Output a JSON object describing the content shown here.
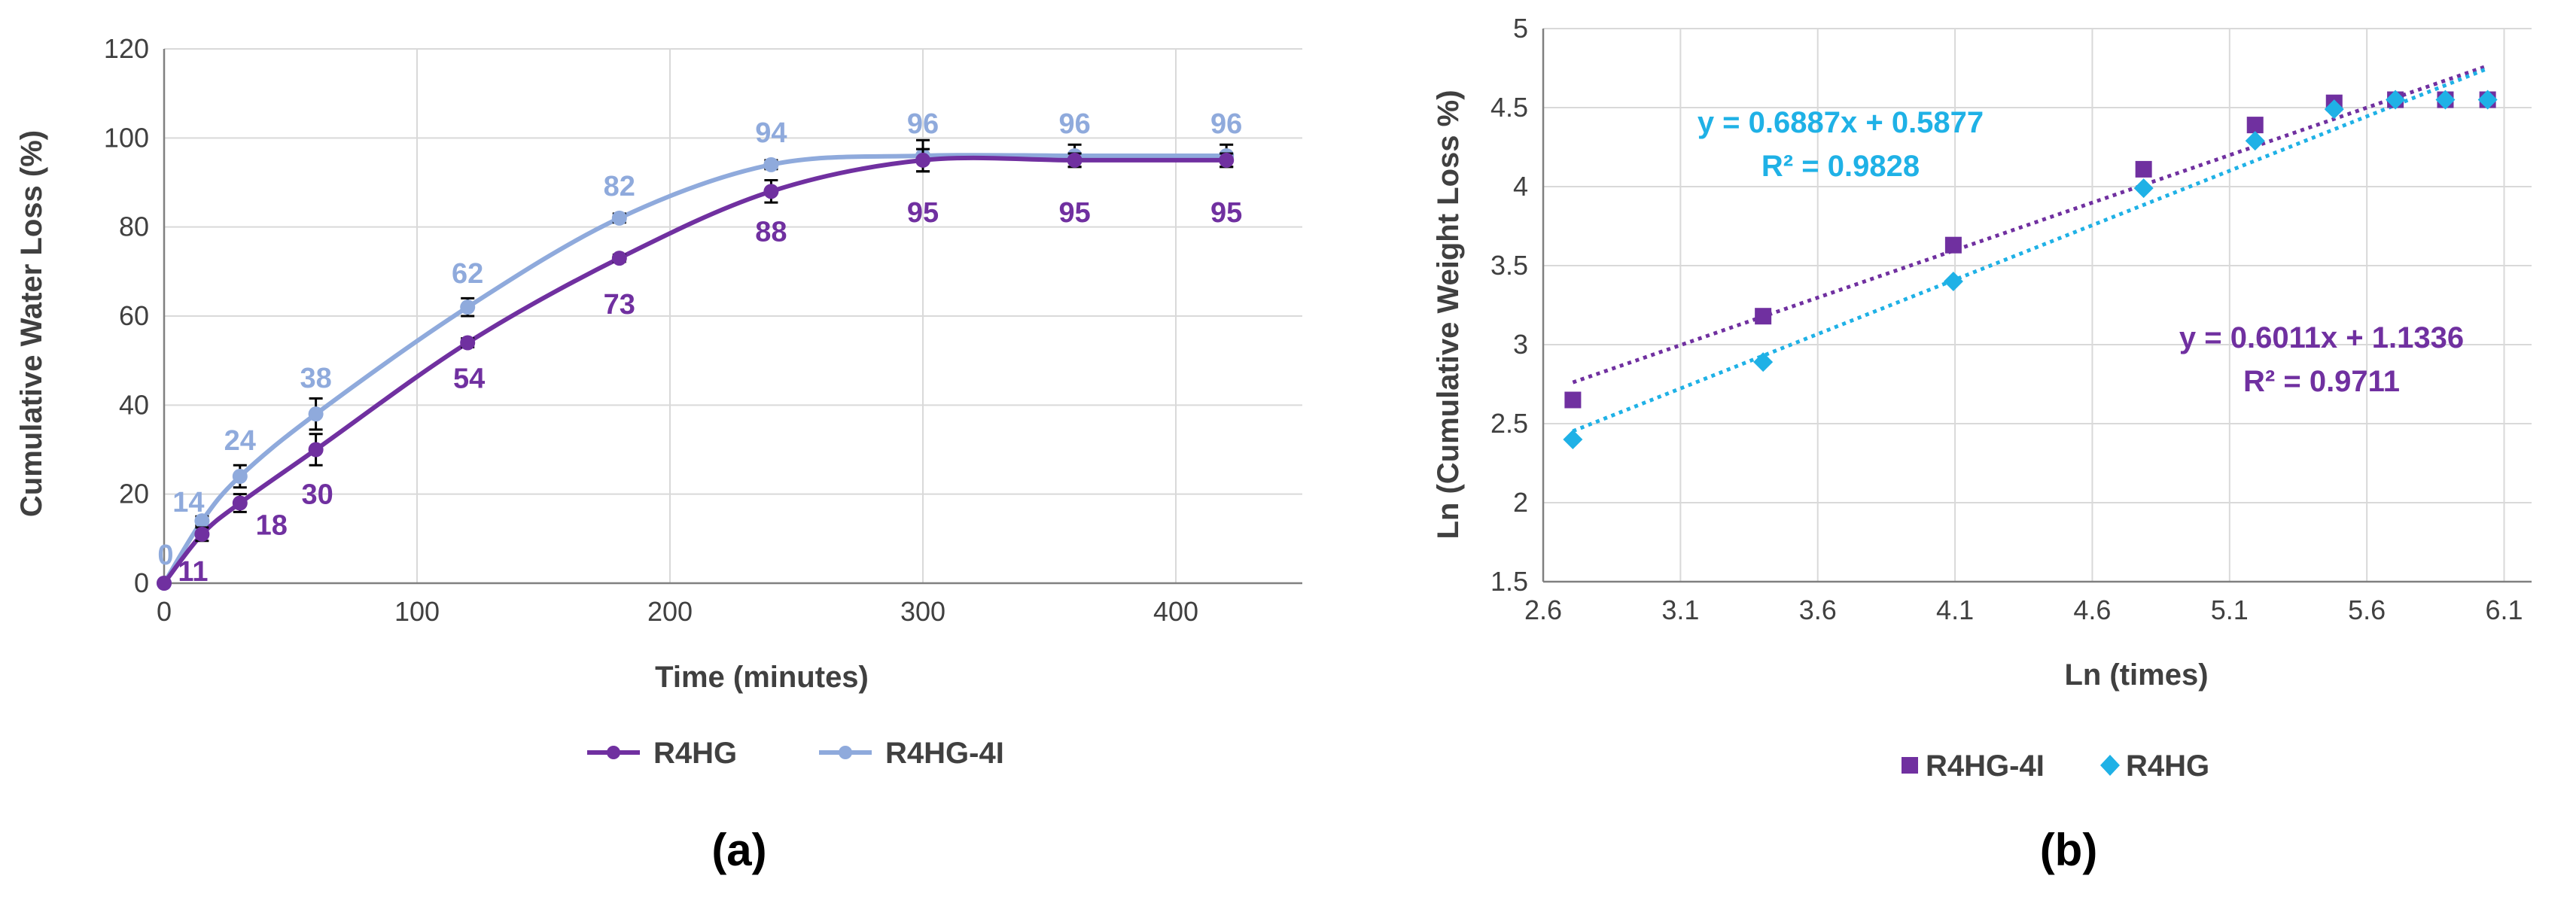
{
  "chart_data": [
    {
      "type": "line",
      "panel_label": "(a)",
      "xlabel": "Time (minutes)",
      "ylabel": "Cumulative Water Loss (%)",
      "xlim": [
        0,
        450
      ],
      "ylim": [
        0,
        120
      ],
      "xticks": [
        0,
        100,
        200,
        300,
        400
      ],
      "yticks": [
        0,
        20,
        40,
        60,
        80,
        100,
        120
      ],
      "grid": true,
      "legend_position": "bottom",
      "x": [
        0,
        15,
        30,
        60,
        120,
        180,
        240,
        300,
        360,
        420
      ],
      "series": [
        {
          "name": "R4HG",
          "color": "#7030a0",
          "values": [
            0,
            11,
            18,
            30,
            54,
            73,
            88,
            95,
            95,
            95
          ],
          "labels": [
            "",
            "11",
            "18",
            "30",
            "54",
            "73",
            "88",
            "95",
            "95",
            "95"
          ],
          "errors": [
            0,
            1.5,
            2,
            3.5,
            1,
            0.8,
            2.5,
            2.5,
            1.5,
            1.5
          ]
        },
        {
          "name": "R4HG-4I",
          "color": "#8faadc",
          "values": [
            0,
            14,
            24,
            38,
            62,
            82,
            94,
            96,
            96,
            96
          ],
          "labels": [
            "0",
            "14",
            "24",
            "38",
            "62",
            "82",
            "94",
            "96",
            "96",
            "96"
          ],
          "errors": [
            0,
            1,
            2.5,
            3.5,
            2,
            1,
            1,
            3.5,
            2.5,
            2.5
          ]
        }
      ]
    },
    {
      "type": "scatter",
      "panel_label": "(b)",
      "xlabel": "Ln (times)",
      "ylabel": "Ln (Cumulative Weight Loss %)",
      "xlim": [
        2.6,
        6.2
      ],
      "ylim": [
        1.5,
        5
      ],
      "xticks": [
        "2.6",
        "3.1",
        "3.6",
        "4.1",
        "4.6",
        "5.1",
        "5.6",
        "6.1"
      ],
      "yticks": [
        "1.5",
        "2",
        "2.5",
        "3",
        "3.5",
        "4",
        "4.5",
        "5"
      ],
      "grid": true,
      "legend_position": "bottom",
      "series": [
        {
          "name": "R4HG-4I",
          "marker": "square",
          "color": "#7030a0",
          "x": [
            2.708,
            3.401,
            4.094,
            4.787,
            5.193,
            5.481,
            5.704,
            5.886,
            6.04
          ],
          "y": [
            2.65,
            3.18,
            3.63,
            4.11,
            4.39,
            4.53,
            4.55,
            4.55,
            4.55
          ],
          "trendline": {
            "slope": 0.6011,
            "intercept": 1.1336,
            "equation": "y = 0.6011x + 1.1336",
            "r2": "R² = 0.9711"
          }
        },
        {
          "name": "R4HG",
          "marker": "diamond",
          "color": "#1fb1e6",
          "x": [
            2.708,
            3.401,
            4.094,
            4.787,
            5.193,
            5.481,
            5.704,
            5.886,
            6.04
          ],
          "y": [
            2.4,
            2.89,
            3.4,
            3.99,
            4.29,
            4.49,
            4.55,
            4.55,
            4.55
          ],
          "trendline": {
            "slope": 0.6887,
            "intercept": 0.5877,
            "equation": "y = 0.6887x + 0.5877",
            "r2": "R² = 0.9828"
          }
        }
      ]
    }
  ]
}
